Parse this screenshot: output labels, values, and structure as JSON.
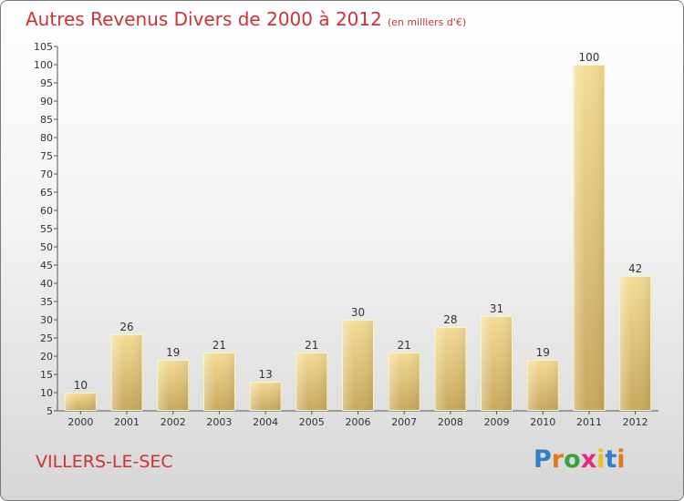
{
  "title": "Autres Revenus Divers de 2000 à 2012",
  "subtitle": "(en milliers d'€)",
  "commune": "VILLERS-LE-SEC",
  "logo": {
    "letters": [
      "P",
      "r",
      "o",
      "x",
      "i",
      "t",
      "i"
    ],
    "colors": [
      "#2f7fc8",
      "#e07b19",
      "#3aa23a",
      "#e02a7a",
      "#e8c020",
      "#2f7fc8",
      "#e07b19"
    ]
  },
  "colors": {
    "title": "#cc3333",
    "bar_light": "#f3dc95",
    "bar_dark": "#c8a85c"
  },
  "chart_data": {
    "type": "bar",
    "title": "Autres Revenus Divers de 2000 à 2012",
    "subtitle": "(en milliers d'€)",
    "categories": [
      "2000",
      "2001",
      "2002",
      "2003",
      "2004",
      "2005",
      "2006",
      "2007",
      "2008",
      "2009",
      "2010",
      "2011",
      "2012"
    ],
    "values": [
      10,
      26,
      19,
      21,
      13,
      21,
      30,
      21,
      28,
      31,
      19,
      100,
      42
    ],
    "yticks": [
      5,
      10,
      15,
      20,
      25,
      30,
      35,
      40,
      45,
      50,
      55,
      60,
      65,
      70,
      75,
      80,
      85,
      90,
      95,
      100,
      105
    ],
    "ylim": [
      5,
      105
    ],
    "grid": false,
    "data_labels": true
  }
}
